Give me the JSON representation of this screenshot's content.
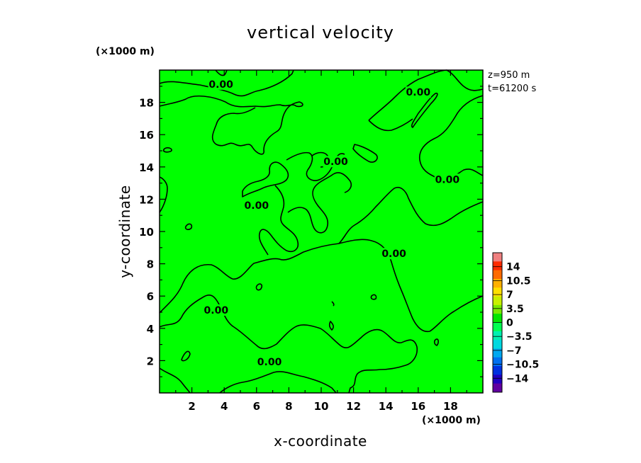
{
  "chart_data": {
    "type": "heatmap",
    "title": "vertical velocity",
    "xlabel": "x-coordinate",
    "ylabel": "y-coordinate",
    "x_unit": "(×1000 m)",
    "y_unit": "(×1000 m)",
    "xlim": [
      0,
      20
    ],
    "ylim": [
      0,
      20
    ],
    "x_ticks": [
      "2",
      "4",
      "6",
      "8",
      "10",
      "12",
      "14",
      "16",
      "18"
    ],
    "y_ticks": [
      "2",
      "4",
      "6",
      "8",
      "10",
      "12",
      "14",
      "16",
      "18"
    ],
    "annotations": [
      "z=950 m",
      "t=61200 s"
    ],
    "field_color": "#00ff00",
    "contour_level": "0.00",
    "contour_labels": [
      {
        "text": "0.00",
        "x": 3.8,
        "y": 19.0
      },
      {
        "text": "0.00",
        "x": 16.0,
        "y": 18.5
      },
      {
        "text": "0.00",
        "x": 10.9,
        "y": 14.2
      },
      {
        "text": "0.00",
        "x": 17.8,
        "y": 13.1
      },
      {
        "text": "0.00",
        "x": 6.0,
        "y": 11.5
      },
      {
        "text": "0.00",
        "x": 14.5,
        "y": 8.5
      },
      {
        "text": "0.00",
        "x": 3.5,
        "y": 5.0
      },
      {
        "text": "0.00",
        "x": 6.8,
        "y": 1.8
      }
    ],
    "colorbar": {
      "levels": [
        "14",
        "10.5",
        "7",
        "3.5",
        "0",
        "−3.5",
        "−7",
        "−10.5",
        "−14"
      ],
      "colors": [
        "#f08080",
        "#ff2a00",
        "#ff6a00",
        "#ffb000",
        "#ffe000",
        "#c8f000",
        "#78e800",
        "#00e600",
        "#00ff50",
        "#00f0b0",
        "#00d8e0",
        "#00a8f0",
        "#0070f0",
        "#0030e0",
        "#2000c0",
        "#6000a0"
      ]
    }
  }
}
